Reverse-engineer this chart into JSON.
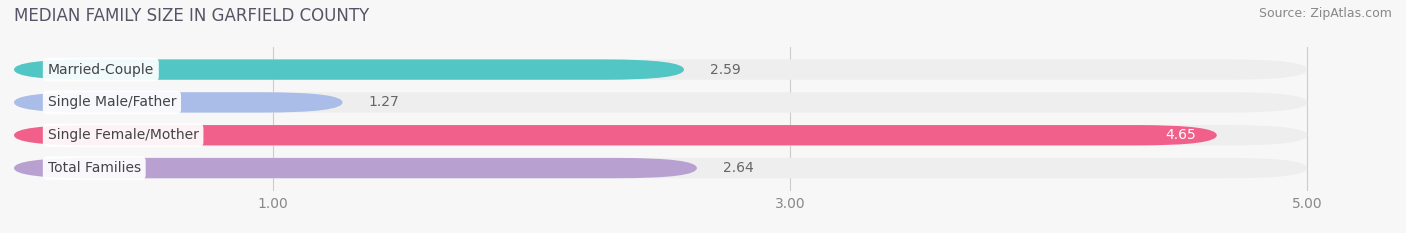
{
  "title": "MEDIAN FAMILY SIZE IN GARFIELD COUNTY",
  "source": "Source: ZipAtlas.com",
  "categories": [
    "Married-Couple",
    "Single Male/Father",
    "Single Female/Mother",
    "Total Families"
  ],
  "values": [
    2.59,
    1.27,
    4.65,
    2.64
  ],
  "bar_colors": [
    "#52c5c5",
    "#aabce8",
    "#f0608a",
    "#b8a0d0"
  ],
  "bar_bg_color": "#eeeeee",
  "xlim": [
    0,
    5.3
  ],
  "xlim_display": [
    0,
    5.0
  ],
  "xticks": [
    1.0,
    3.0,
    5.0
  ],
  "xtick_labels": [
    "1.00",
    "3.00",
    "5.00"
  ],
  "title_fontsize": 12,
  "source_fontsize": 9,
  "label_fontsize": 10,
  "value_fontsize": 10,
  "background_color": "#f7f7f7",
  "bar_height": 0.62,
  "value_color_inside": "#ffffff",
  "value_color_outside": "#666666"
}
